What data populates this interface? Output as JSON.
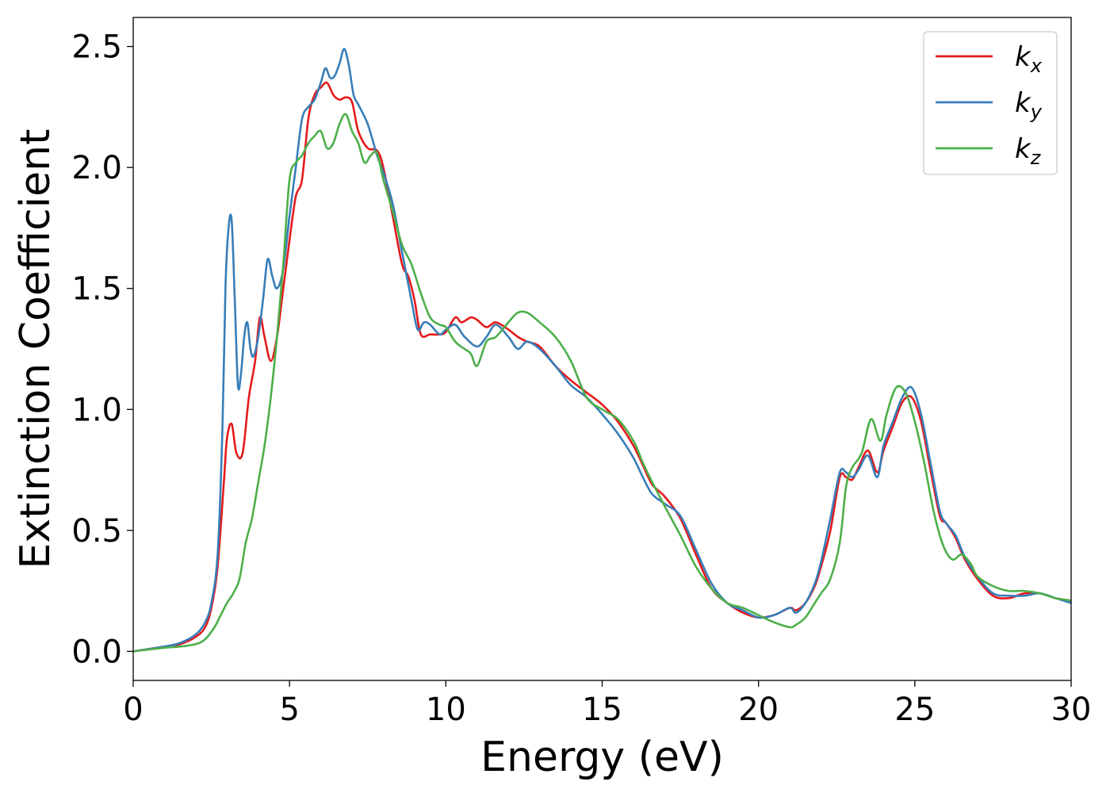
{
  "chart_data": {
    "type": "line",
    "title": "",
    "xlabel": "Energy (eV)",
    "ylabel": "Extinction Coefficient",
    "xlim": [
      0,
      30
    ],
    "ylim": [
      -0.12,
      2.62
    ],
    "xticks": [
      0,
      5,
      10,
      15,
      20,
      25,
      30
    ],
    "xtick_labels": [
      "0",
      "5",
      "10",
      "15",
      "20",
      "25",
      "30"
    ],
    "yticks": [
      0.0,
      0.5,
      1.0,
      1.5,
      2.0,
      2.5
    ],
    "ytick_labels": [
      "0.0",
      "0.5",
      "1.0",
      "1.5",
      "2.0",
      "2.5"
    ],
    "grid": false,
    "legend_position": "top-right",
    "series": [
      {
        "name": "k_x",
        "label_main": "k",
        "label_sub": "x",
        "color": "#e41a1c",
        "x": [
          0,
          1,
          1.5,
          2,
          2.3,
          2.5,
          2.7,
          2.9,
          3.0,
          3.15,
          3.3,
          3.5,
          3.7,
          3.9,
          4.05,
          4.2,
          4.4,
          4.6,
          4.8,
          5.0,
          5.2,
          5.4,
          5.6,
          5.8,
          6.0,
          6.2,
          6.4,
          6.6,
          6.8,
          7.0,
          7.2,
          7.5,
          7.8,
          8.0,
          8.3,
          8.6,
          8.8,
          9.0,
          9.2,
          9.5,
          9.8,
          10.0,
          10.3,
          10.5,
          10.8,
          11.0,
          11.3,
          11.6,
          12.0,
          12.3,
          12.6,
          13.0,
          13.5,
          14.0,
          14.5,
          15.0,
          15.5,
          16.0,
          16.3,
          16.6,
          17.0,
          17.5,
          18.0,
          18.5,
          19.0,
          19.5,
          20.0,
          20.5,
          21.0,
          21.2,
          21.5,
          21.8,
          22.0,
          22.3,
          22.6,
          22.8,
          23.0,
          23.2,
          23.5,
          23.8,
          24.0,
          24.3,
          24.6,
          24.9,
          25.2,
          25.5,
          25.8,
          26.0,
          26.3,
          26.6,
          27.0,
          27.5,
          28.0,
          28.5,
          29.0,
          29.5,
          30.0
        ],
        "values": [
          0.0,
          0.02,
          0.03,
          0.06,
          0.1,
          0.18,
          0.35,
          0.7,
          0.88,
          0.94,
          0.82,
          0.82,
          1.05,
          1.2,
          1.38,
          1.3,
          1.2,
          1.3,
          1.5,
          1.7,
          1.88,
          1.95,
          2.2,
          2.3,
          2.33,
          2.35,
          2.3,
          2.28,
          2.29,
          2.27,
          2.15,
          2.08,
          2.07,
          2.0,
          1.8,
          1.6,
          1.55,
          1.45,
          1.31,
          1.31,
          1.31,
          1.32,
          1.38,
          1.36,
          1.38,
          1.37,
          1.34,
          1.36,
          1.33,
          1.3,
          1.28,
          1.26,
          1.18,
          1.12,
          1.07,
          1.02,
          0.95,
          0.85,
          0.77,
          0.69,
          0.64,
          0.55,
          0.4,
          0.26,
          0.2,
          0.16,
          0.14,
          0.15,
          0.18,
          0.17,
          0.2,
          0.27,
          0.35,
          0.5,
          0.72,
          0.72,
          0.71,
          0.76,
          0.83,
          0.74,
          0.83,
          0.93,
          1.03,
          1.05,
          0.95,
          0.75,
          0.56,
          0.53,
          0.47,
          0.38,
          0.3,
          0.23,
          0.22,
          0.24,
          0.24,
          0.22,
          0.21
        ]
      },
      {
        "name": "k_y",
        "label_main": "k",
        "label_sub": "y",
        "color": "#377eb8",
        "x": [
          0,
          1,
          1.5,
          2,
          2.3,
          2.5,
          2.7,
          2.85,
          2.95,
          3.05,
          3.15,
          3.25,
          3.35,
          3.45,
          3.55,
          3.65,
          3.75,
          3.85,
          4.0,
          4.15,
          4.3,
          4.45,
          4.6,
          4.8,
          5.0,
          5.2,
          5.4,
          5.6,
          5.8,
          6.0,
          6.15,
          6.3,
          6.45,
          6.6,
          6.75,
          6.9,
          7.05,
          7.2,
          7.5,
          7.8,
          8.0,
          8.3,
          8.6,
          8.9,
          9.1,
          9.3,
          9.5,
          9.8,
          10.0,
          10.3,
          10.6,
          11.0,
          11.3,
          11.6,
          12.0,
          12.3,
          12.6,
          13.0,
          13.5,
          14.0,
          14.5,
          15.0,
          15.5,
          16.0,
          16.3,
          16.6,
          17.0,
          17.5,
          18.0,
          18.5,
          19.0,
          19.5,
          20.0,
          20.5,
          21.0,
          21.2,
          21.5,
          21.8,
          22.0,
          22.3,
          22.6,
          22.8,
          23.0,
          23.2,
          23.5,
          23.8,
          24.0,
          24.3,
          24.6,
          24.9,
          25.2,
          25.5,
          25.8,
          26.0,
          26.3,
          26.6,
          27.0,
          27.5,
          28.0,
          28.5,
          29.0,
          29.5,
          30.0
        ],
        "values": [
          0.0,
          0.02,
          0.035,
          0.07,
          0.12,
          0.2,
          0.4,
          0.9,
          1.5,
          1.75,
          1.78,
          1.45,
          1.1,
          1.15,
          1.3,
          1.36,
          1.25,
          1.22,
          1.3,
          1.45,
          1.62,
          1.55,
          1.5,
          1.58,
          1.8,
          2.0,
          2.2,
          2.25,
          2.28,
          2.35,
          2.41,
          2.37,
          2.38,
          2.43,
          2.49,
          2.42,
          2.3,
          2.26,
          2.18,
          2.05,
          1.98,
          1.85,
          1.65,
          1.45,
          1.33,
          1.36,
          1.35,
          1.31,
          1.33,
          1.35,
          1.3,
          1.26,
          1.3,
          1.35,
          1.3,
          1.25,
          1.28,
          1.25,
          1.18,
          1.1,
          1.05,
          0.98,
          0.9,
          0.8,
          0.72,
          0.65,
          0.61,
          0.56,
          0.42,
          0.28,
          0.2,
          0.17,
          0.14,
          0.15,
          0.18,
          0.16,
          0.2,
          0.28,
          0.37,
          0.55,
          0.74,
          0.74,
          0.72,
          0.75,
          0.81,
          0.72,
          0.85,
          0.95,
          1.05,
          1.09,
          0.98,
          0.78,
          0.58,
          0.53,
          0.48,
          0.39,
          0.31,
          0.24,
          0.23,
          0.23,
          0.24,
          0.22,
          0.2
        ]
      },
      {
        "name": "k_z",
        "label_main": "k",
        "label_sub": "z",
        "color": "#4daf4a",
        "x": [
          0,
          1,
          1.5,
          2,
          2.3,
          2.6,
          2.8,
          3.0,
          3.2,
          3.4,
          3.6,
          3.8,
          4.0,
          4.2,
          4.4,
          4.6,
          4.8,
          5.0,
          5.2,
          5.4,
          5.6,
          5.8,
          6.0,
          6.2,
          6.4,
          6.6,
          6.8,
          7.0,
          7.2,
          7.4,
          7.6,
          7.8,
          8.0,
          8.3,
          8.6,
          8.9,
          9.2,
          9.5,
          9.8,
          10.0,
          10.3,
          10.6,
          10.8,
          11.0,
          11.3,
          11.6,
          12.0,
          12.3,
          12.6,
          13.0,
          13.5,
          14.0,
          14.5,
          15.0,
          15.5,
          16.0,
          16.3,
          16.6,
          17.0,
          17.5,
          18.0,
          18.5,
          19.0,
          19.5,
          20.0,
          20.5,
          21.0,
          21.2,
          21.5,
          21.8,
          22.0,
          22.3,
          22.6,
          22.8,
          23.0,
          23.3,
          23.6,
          23.9,
          24.1,
          24.4,
          24.7,
          25.0,
          25.3,
          25.6,
          25.9,
          26.2,
          26.5,
          26.8,
          27.0,
          27.5,
          28.0,
          28.5,
          29.0,
          29.5,
          30.0
        ],
        "values": [
          0.0,
          0.015,
          0.02,
          0.03,
          0.05,
          0.1,
          0.15,
          0.2,
          0.24,
          0.3,
          0.45,
          0.55,
          0.7,
          0.85,
          1.05,
          1.3,
          1.6,
          1.95,
          2.02,
          2.05,
          2.1,
          2.13,
          2.15,
          2.08,
          2.1,
          2.18,
          2.22,
          2.15,
          2.1,
          2.02,
          2.05,
          2.06,
          1.95,
          1.82,
          1.68,
          1.6,
          1.48,
          1.38,
          1.35,
          1.34,
          1.28,
          1.25,
          1.23,
          1.18,
          1.28,
          1.3,
          1.36,
          1.4,
          1.4,
          1.36,
          1.3,
          1.2,
          1.05,
          1.0,
          0.96,
          0.87,
          0.78,
          0.7,
          0.6,
          0.48,
          0.35,
          0.26,
          0.2,
          0.18,
          0.15,
          0.12,
          0.1,
          0.11,
          0.14,
          0.2,
          0.24,
          0.3,
          0.45,
          0.68,
          0.76,
          0.82,
          0.96,
          0.87,
          0.98,
          1.09,
          1.07,
          0.95,
          0.78,
          0.58,
          0.44,
          0.38,
          0.4,
          0.36,
          0.31,
          0.27,
          0.25,
          0.25,
          0.24,
          0.22,
          0.21
        ]
      }
    ]
  }
}
